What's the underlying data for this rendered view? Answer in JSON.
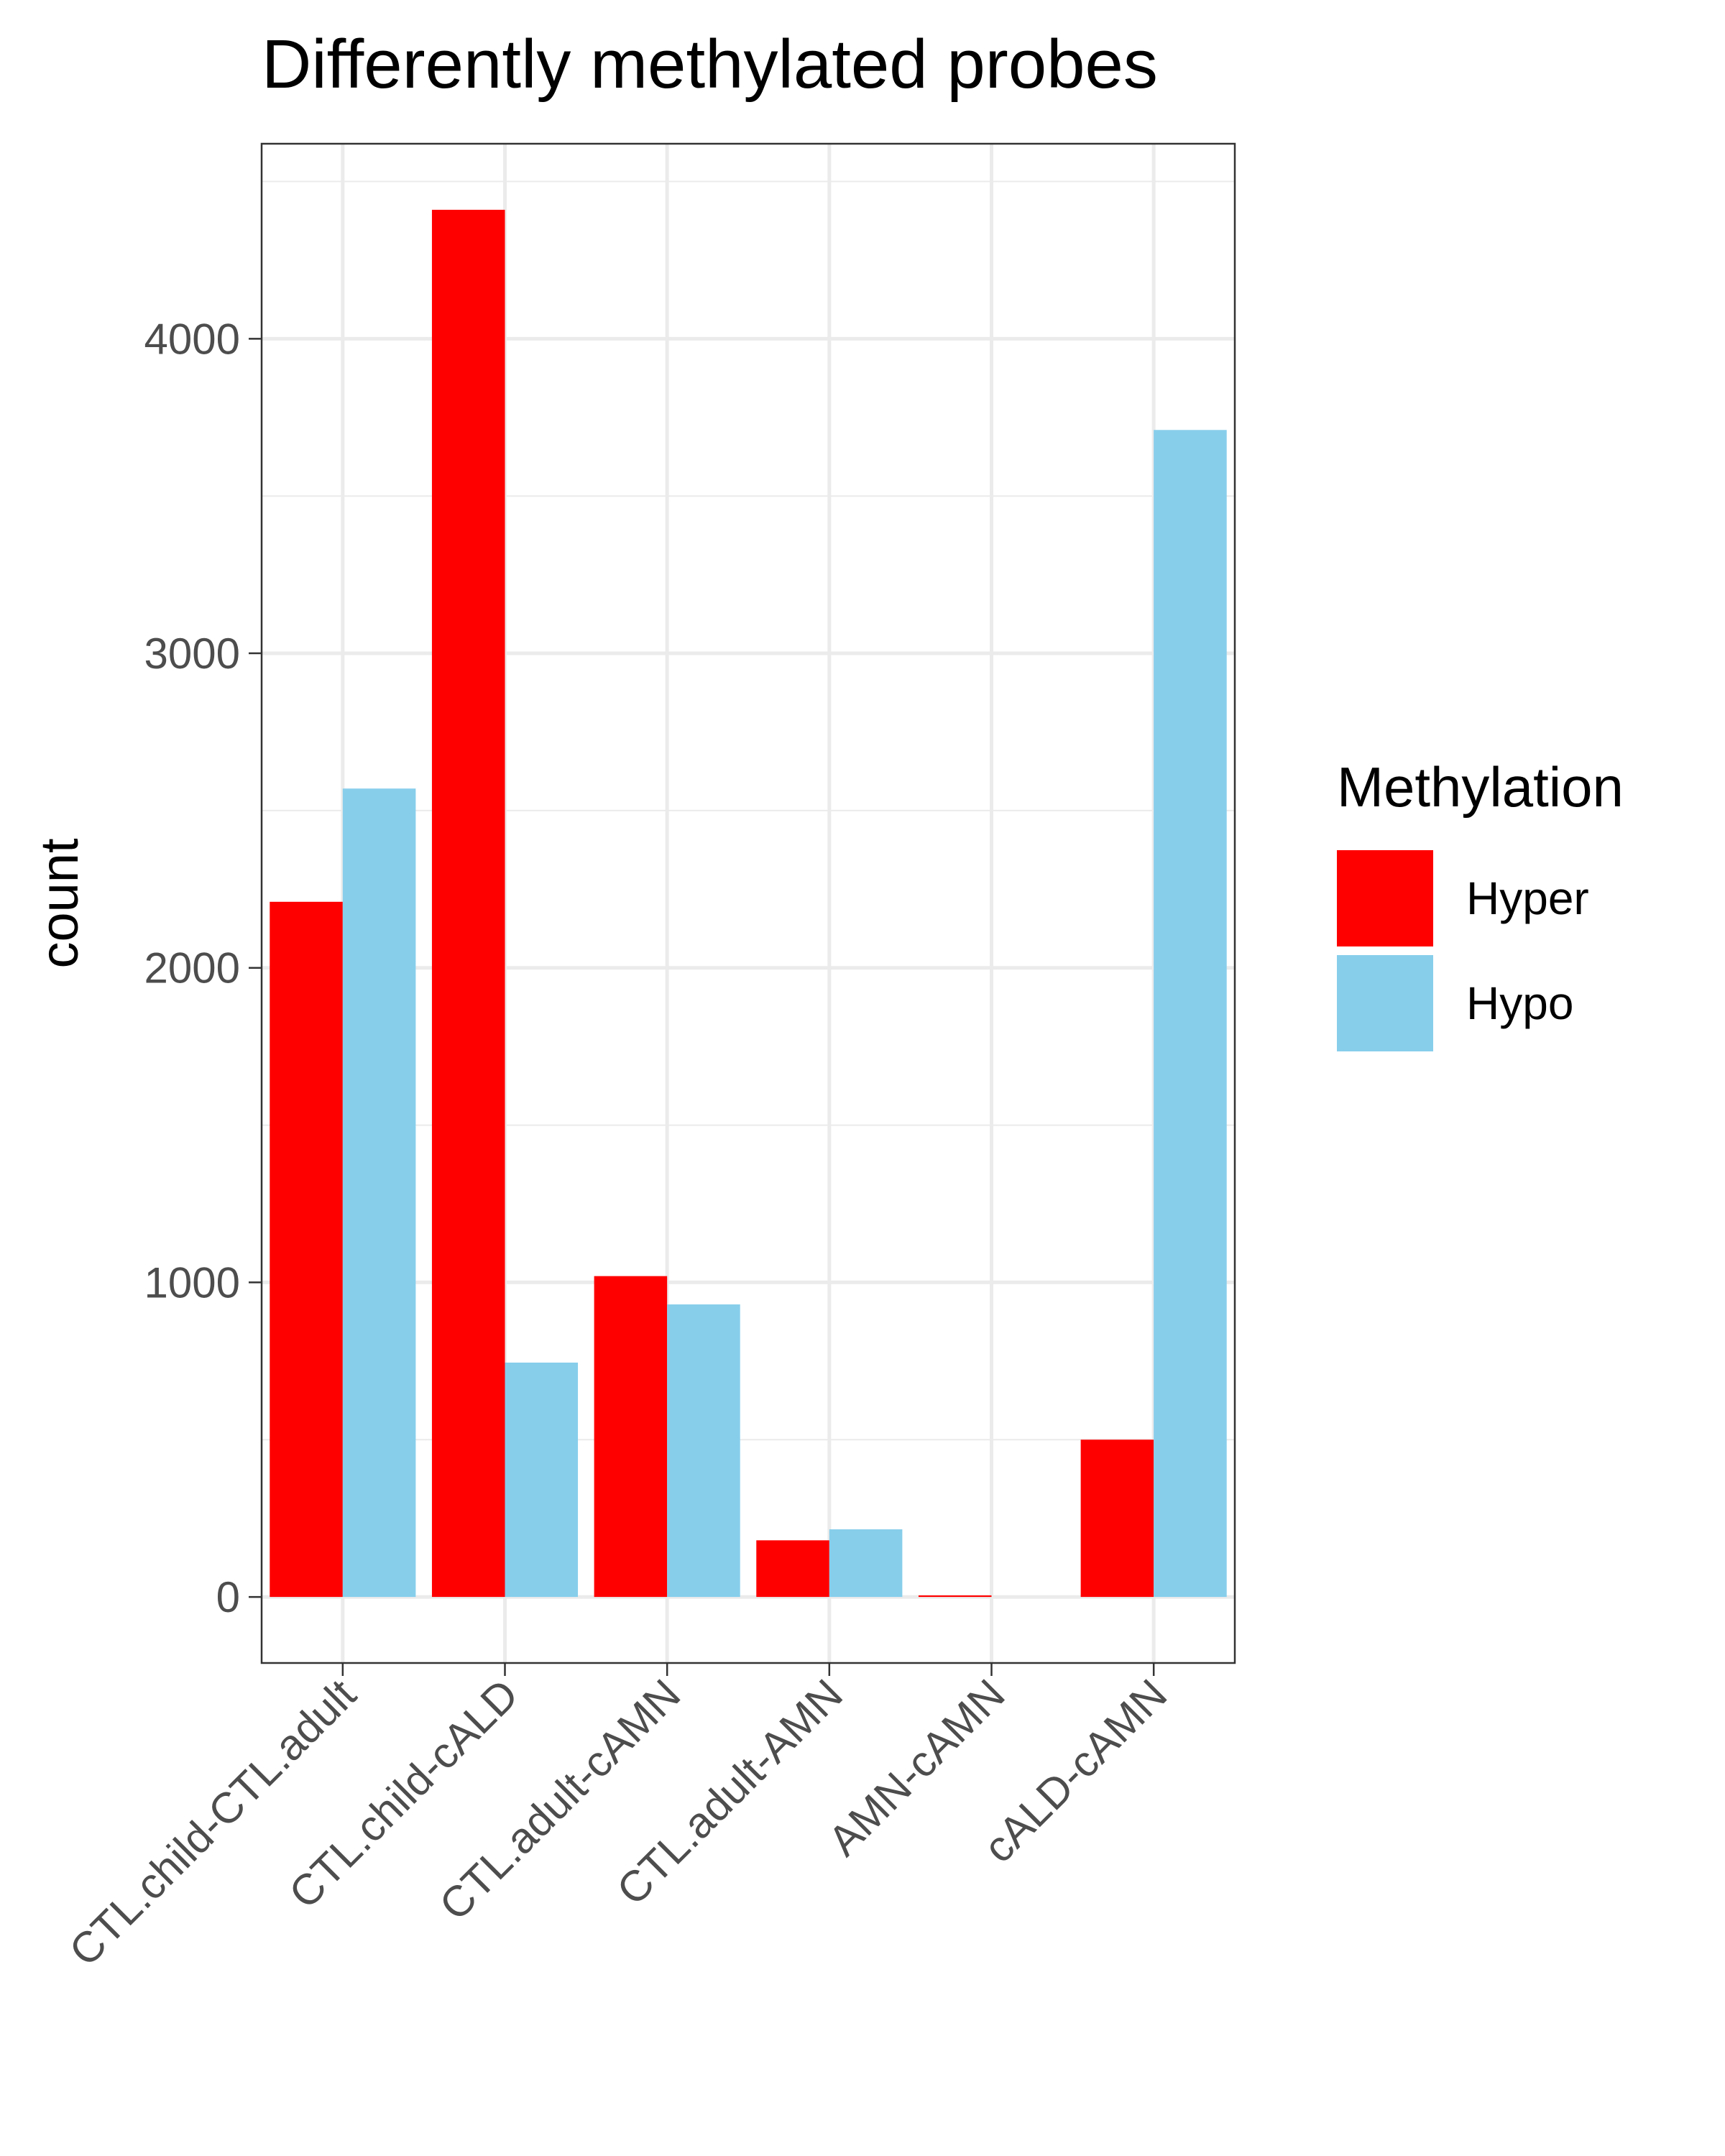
{
  "chart_data": {
    "type": "bar",
    "title": "Differently methylated probes",
    "xlabel": "",
    "ylabel": "count",
    "categories": [
      "CTL.child-CTL.adult",
      "CTL.child-cALD",
      "CTL.adult-cAMN",
      "CTL.adult-AMN",
      "AMN-cAMN",
      "cALD-cAMN"
    ],
    "series": [
      {
        "name": "Hyper",
        "color": "#ff0000",
        "values": [
          2210,
          4410,
          1020,
          180,
          5,
          500
        ]
      },
      {
        "name": "Hypo",
        "color": "#87ceeb",
        "values": [
          2570,
          745,
          930,
          215,
          0,
          3710
        ]
      }
    ],
    "ylim": [
      -210,
      4620
    ],
    "yticks": [
      0,
      1000,
      2000,
      3000,
      4000
    ],
    "ytick_labels": [
      "0",
      "1000",
      "2000",
      "3000",
      "4000"
    ],
    "grid": true,
    "legend": {
      "title": "Methylation",
      "placement": "right"
    }
  }
}
